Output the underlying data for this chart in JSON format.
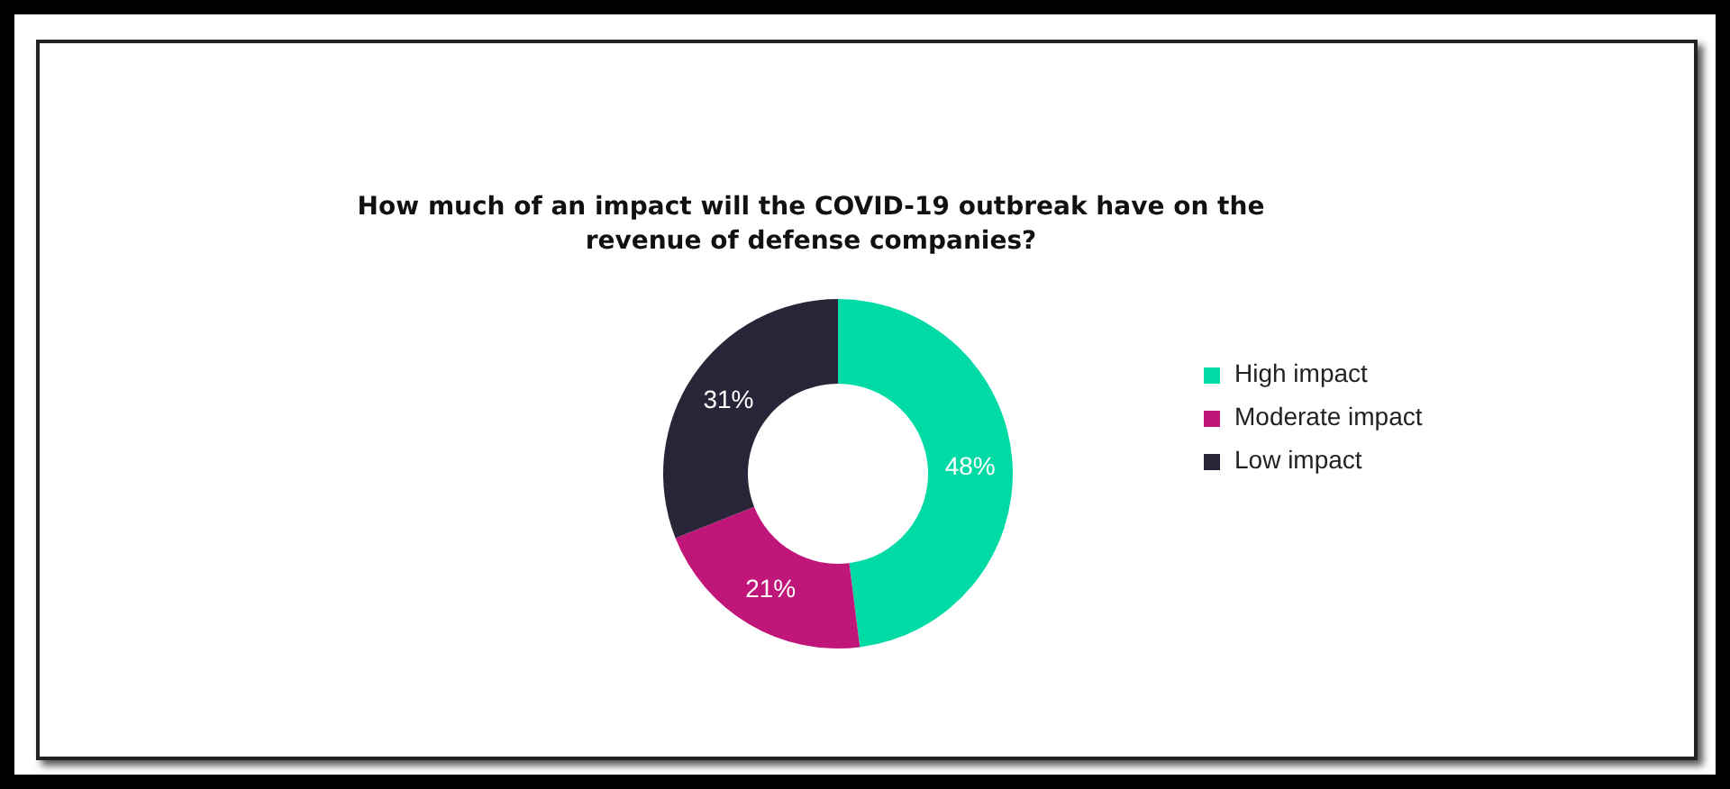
{
  "chart_data": {
    "type": "donut",
    "title": "How much of an impact will the COVID-19 outbreak have on the revenue of defense companies?",
    "categories": [
      "High impact",
      "Moderate impact",
      "Low impact"
    ],
    "values": [
      48,
      21,
      31
    ],
    "colors": [
      "#00dba6",
      "#c0167a",
      "#2a2438"
    ],
    "value_labels": [
      "48%",
      "21%",
      "31%"
    ],
    "legend": "right"
  }
}
